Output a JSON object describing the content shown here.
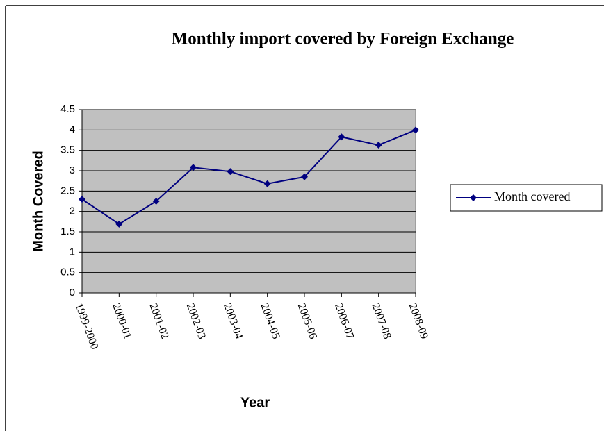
{
  "chart_data": {
    "type": "line",
    "title": "Monthly import covered by Foreign Exchange",
    "x_label": "Year",
    "y_label": "Month Covered",
    "categories": [
      "1999-2000",
      "2000-01",
      "2001-02",
      "2002-03",
      "2003-04",
      "2004-05",
      "2005-06",
      "2006-07",
      "2007-08",
      "2008-09"
    ],
    "series": [
      {
        "name": "Month covered",
        "color": "#000080",
        "values": [
          2.3,
          1.69,
          2.25,
          3.08,
          2.98,
          2.68,
          2.85,
          3.83,
          3.63,
          4.0
        ]
      }
    ],
    "ylim": [
      0,
      4.5
    ],
    "yticks": [
      0,
      0.5,
      1,
      1.5,
      2,
      2.5,
      3,
      3.5,
      4,
      4.5
    ],
    "grid": true,
    "plot_background": "#c0c0c0",
    "legend": "right"
  }
}
